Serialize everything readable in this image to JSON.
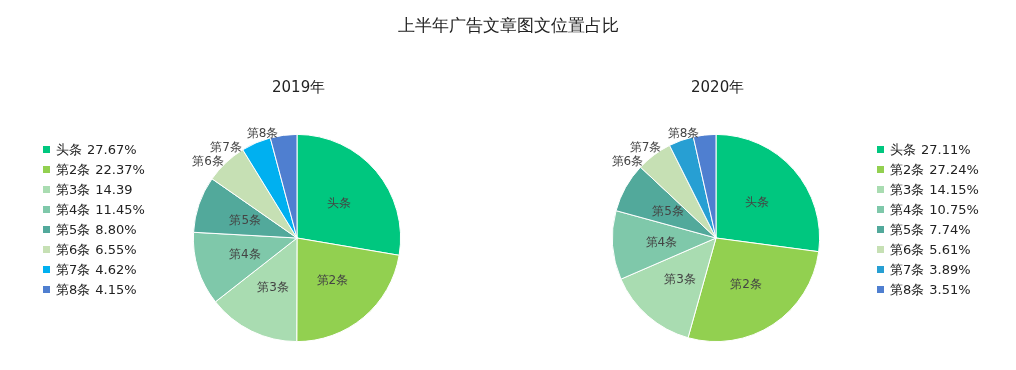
{
  "chart_data": [
    {
      "type": "pie",
      "title": "上半年广告文章图文位置占比",
      "subtitle": "2019年",
      "legend": "left",
      "categories": [
        "头条",
        "第2条",
        "第3条",
        "第4条",
        "第5条",
        "第6条",
        "第7条",
        "第8条"
      ],
      "values": [
        27.67,
        22.37,
        14.39,
        11.45,
        8.8,
        6.55,
        4.62,
        4.15
      ],
      "value_labels": [
        "27.67%",
        "22.37%",
        "14.39",
        "11.45%",
        "8.80%",
        "6.55%",
        "4.62%",
        "4.15%"
      ],
      "colors": [
        "#00c77f",
        "#92d050",
        "#a9dcb1",
        "#7fc8aa",
        "#52a99b",
        "#c6e0b4",
        "#00b0f0",
        "#4f7fd0"
      ]
    },
    {
      "type": "pie",
      "subtitle": "2020年",
      "legend": "right",
      "categories": [
        "头条",
        "第2条",
        "第3条",
        "第4条",
        "第5条",
        "第6条",
        "第7条",
        "第8条"
      ],
      "values": [
        27.11,
        27.24,
        14.15,
        10.75,
        7.74,
        5.61,
        3.89,
        3.51
      ],
      "value_labels": [
        "27.11%",
        "27.24%",
        "14.15%",
        "10.75%",
        "7.74%",
        "5.61%",
        "3.89%",
        "3.51%"
      ],
      "colors": [
        "#00c77f",
        "#92d050",
        "#a9dcb1",
        "#7fc8aa",
        "#52a99b",
        "#c6e0b4",
        "#279fd3",
        "#4f7fd0"
      ]
    }
  ]
}
